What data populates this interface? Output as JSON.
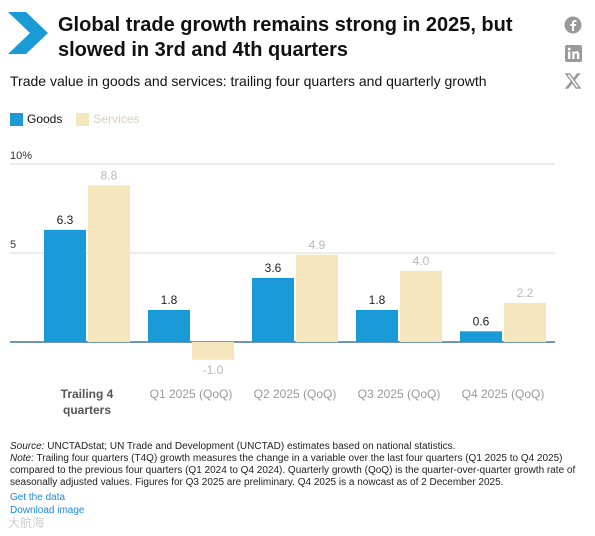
{
  "header": {
    "title": "Global trade growth remains strong in 2025, but slowed in 3rd and 4th quarters",
    "subtitle": "Trade value in goods and services: trailing four quarters and quarterly growth"
  },
  "social": [
    "facebook-icon",
    "linkedin-icon",
    "x-icon"
  ],
  "colors": {
    "goods": "#1a9ad6",
    "services": "#f5e6bd",
    "logo": "#1a9ad6",
    "axis": "#1a5a8a",
    "link": "#1e88e5"
  },
  "chart_data": {
    "type": "bar",
    "categories": [
      "Trailing 4\nquarters",
      "Q1 2025 (QoQ)",
      "Q2 2025 (QoQ)",
      "Q3 2025 (QoQ)",
      "Q4 2025 (QoQ)"
    ],
    "series": [
      {
        "name": "Goods",
        "values": [
          6.3,
          1.8,
          3.6,
          1.8,
          0.6
        ],
        "labels": [
          "6.3",
          "1.8",
          "3.6",
          "1.8",
          "0.6"
        ]
      },
      {
        "name": "Services",
        "values": [
          8.8,
          -1.0,
          4.9,
          4.0,
          2.2
        ],
        "labels": [
          "8.8",
          "-1.0",
          "4.9",
          "4.0",
          "2.2"
        ]
      }
    ],
    "yticks": [
      "10%",
      "5"
    ],
    "ytick_values": [
      10,
      5
    ],
    "ylim": [
      -1.3,
      10.5
    ],
    "grid": true,
    "legend": "top-left"
  },
  "footer": {
    "source_label": "Source:",
    "source": " UNCTADstat; UN Trade and Development (UNCTAD) estimates based on national statistics.",
    "note_label": "Note:",
    "note": " Trailing four quarters (T4Q) growth measures the change in a variable over the last four quarters (Q1 2025 to Q4 2025) compared to the previous four quarters (Q1 2024 to Q4 2024). Quarterly growth (QoQ) is the quarter-over-quarter growth rate of seasonally adjusted values. Figures for Q3 2025 are preliminary. Q4 2025 is a nowcast as of 2 December 2025.",
    "get_data": "Get the data",
    "download": "Download image"
  },
  "watermark": "大航海"
}
